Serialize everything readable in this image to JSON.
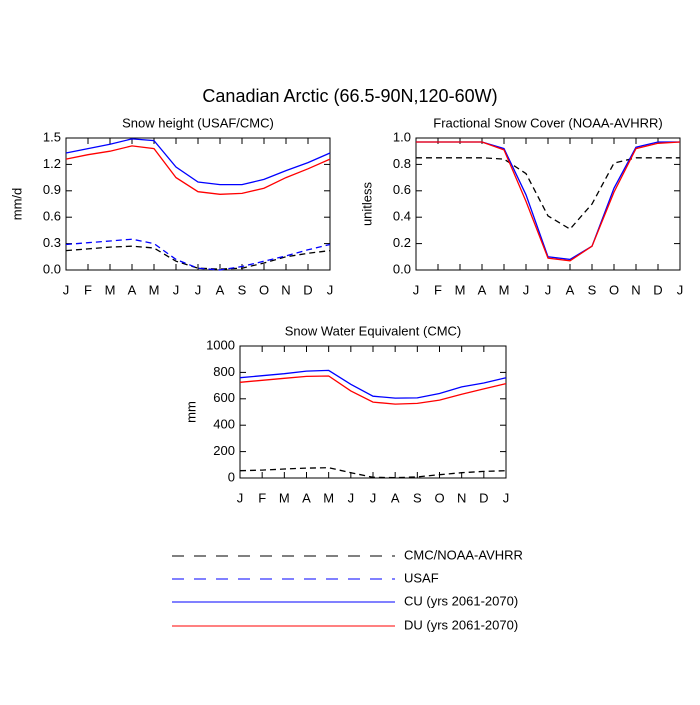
{
  "title": "Canadian Arctic (66.5-90N,120-60W)",
  "chart_data": [
    {
      "type": "line",
      "title": "Snow height (USAF/CMC)",
      "y_label": "mm/d",
      "categories": [
        "J",
        "F",
        "M",
        "A",
        "M",
        "J",
        "J",
        "A",
        "S",
        "O",
        "N",
        "D",
        "J"
      ],
      "ylim": [
        0,
        1.5
      ],
      "yticks": [
        {
          "value": 0,
          "label": "0.0"
        },
        0.3,
        0.6,
        0.9,
        1.2,
        1.5
      ],
      "series": [
        {
          "name": "CMC/NOAA-AVHRR",
          "color": "#000000",
          "dash": true,
          "values": [
            0.22,
            0.24,
            0.26,
            0.27,
            0.25,
            0.1,
            0.02,
            0.01,
            0.02,
            0.08,
            0.15,
            0.19,
            0.22
          ]
        },
        {
          "name": "USAF",
          "color": "#0000ff",
          "dash": true,
          "values": [
            0.29,
            0.31,
            0.33,
            0.35,
            0.3,
            0.12,
            0.02,
            0.0,
            0.04,
            0.1,
            0.16,
            0.23,
            0.29
          ]
        },
        {
          "name": "CU (yrs 2061-2070)",
          "color": "#0000ff",
          "dash": false,
          "values": [
            1.33,
            1.38,
            1.43,
            1.49,
            1.47,
            1.17,
            1.0,
            0.97,
            0.97,
            1.03,
            1.13,
            1.22,
            1.33
          ]
        },
        {
          "name": "DU (yrs 2061-2070)",
          "color": "#ff0000",
          "dash": false,
          "values": [
            1.26,
            1.31,
            1.35,
            1.41,
            1.38,
            1.05,
            0.89,
            0.86,
            0.87,
            0.93,
            1.05,
            1.15,
            1.26
          ]
        }
      ]
    },
    {
      "type": "line",
      "title": "Fractional Snow Cover (NOAA-AVHRR)",
      "y_label": "unitless",
      "categories": [
        "J",
        "F",
        "M",
        "A",
        "M",
        "J",
        "J",
        "A",
        "S",
        "O",
        "N",
        "D",
        "J"
      ],
      "ylim": [
        0,
        1
      ],
      "yticks": [
        {
          "value": 0,
          "label": "0.0"
        },
        0.2,
        0.4,
        0.6,
        0.8,
        {
          "value": 1,
          "label": "1.0"
        }
      ],
      "series": [
        {
          "color": "#000000",
          "dash": true,
          "values": [
            0.85,
            0.85,
            0.85,
            0.85,
            0.84,
            0.73,
            0.41,
            0.31,
            0.5,
            0.81,
            0.85,
            0.85,
            0.85
          ]
        },
        {
          "color": "#0000ff",
          "dash": false,
          "values": [
            0.97,
            0.97,
            0.97,
            0.97,
            0.92,
            0.57,
            0.1,
            0.08,
            0.18,
            0.62,
            0.93,
            0.97,
            0.97
          ]
        },
        {
          "color": "#ff0000",
          "dash": false,
          "values": [
            0.97,
            0.97,
            0.97,
            0.97,
            0.91,
            0.52,
            0.09,
            0.07,
            0.18,
            0.59,
            0.92,
            0.96,
            0.97
          ]
        }
      ]
    },
    {
      "type": "line",
      "title": "Snow Water Equivalent (CMC)",
      "y_label": "mm",
      "categories": [
        "J",
        "F",
        "M",
        "A",
        "M",
        "J",
        "J",
        "A",
        "S",
        "O",
        "N",
        "D",
        "J"
      ],
      "ylim": [
        0,
        1000
      ],
      "yticks": [
        0,
        200,
        400,
        600,
        800,
        1000
      ],
      "series": [
        {
          "color": "#000000",
          "dash": true,
          "values": [
            55,
            60,
            68,
            75,
            78,
            40,
            5,
            2,
            8,
            25,
            40,
            50,
            55
          ]
        },
        {
          "color": "#0000ff",
          "dash": false,
          "values": [
            760,
            775,
            790,
            810,
            815,
            710,
            620,
            605,
            607,
            640,
            690,
            720,
            760
          ]
        },
        {
          "color": "#ff0000",
          "dash": false,
          "values": [
            725,
            740,
            755,
            770,
            773,
            660,
            575,
            560,
            565,
            590,
            635,
            675,
            715
          ]
        }
      ]
    }
  ]
}
